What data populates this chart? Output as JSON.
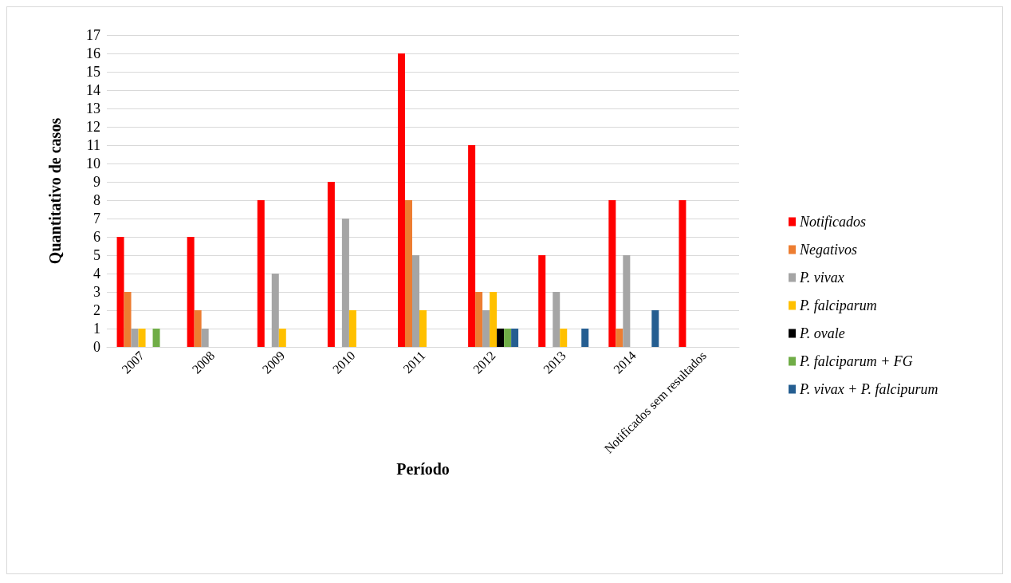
{
  "chart_data": {
    "type": "bar",
    "xlabel": "Período",
    "ylabel": "Quantitativo de casos",
    "categories": [
      "2007",
      "2008",
      "2009",
      "2010",
      "2011",
      "2012",
      "2013",
      "2014",
      "Notificados sem resultados"
    ],
    "series": [
      {
        "name": "Notificados",
        "color": "#ff0000",
        "values": [
          6,
          6,
          8,
          9,
          16,
          11,
          5,
          8,
          8
        ]
      },
      {
        "name": "Negativos",
        "color": "#ed7d31",
        "values": [
          3,
          2,
          0,
          0,
          8,
          3,
          0,
          1,
          0
        ]
      },
      {
        "name": "P. vivax",
        "color": "#a5a5a5",
        "values": [
          1,
          1,
          4,
          7,
          5,
          2,
          3,
          5,
          0
        ]
      },
      {
        "name": "P. falciparum",
        "color": "#ffc000",
        "values": [
          1,
          0,
          1,
          2,
          2,
          3,
          1,
          0,
          0
        ]
      },
      {
        "name": "P. ovale",
        "color": "#000000",
        "values": [
          0,
          0,
          0,
          0,
          0,
          1,
          0,
          0,
          0
        ]
      },
      {
        "name": "P. falciparum + FG",
        "color": "#70ad47",
        "values": [
          1,
          0,
          0,
          0,
          0,
          1,
          0,
          0,
          0
        ]
      },
      {
        "name": "P. vivax + P. falcipurum",
        "color": "#255e91",
        "values": [
          0,
          0,
          0,
          0,
          0,
          1,
          1,
          2,
          0
        ]
      }
    ],
    "ylim": [
      0,
      17
    ],
    "yticks": [
      0,
      1,
      2,
      3,
      4,
      5,
      6,
      7,
      8,
      9,
      10,
      11,
      12,
      13,
      14,
      15,
      16,
      17
    ],
    "grid": "y",
    "legend": "right"
  }
}
